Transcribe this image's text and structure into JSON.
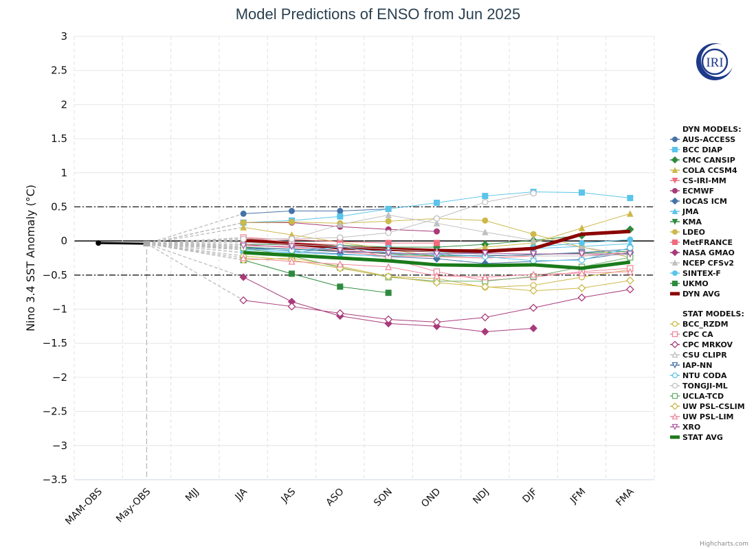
{
  "chart_data": {
    "type": "line",
    "title": "Model Predictions of ENSO from Jun 2025",
    "xlabel": "",
    "ylabel": "Nino 3.4 SST Anomaly (°C)",
    "ylim": [
      -3.5,
      3
    ],
    "yticks": [
      3,
      2.5,
      2,
      1.5,
      1,
      0.5,
      0,
      -0.5,
      -1,
      -1.5,
      -2,
      -2.5,
      -3,
      -3.5
    ],
    "ytick_labels": [
      "3",
      "2.5",
      "2",
      "1.5",
      "1",
      "0.5",
      "0",
      "−0.5",
      "−1",
      "−1.5",
      "−2",
      "−2.5",
      "−3",
      "−3.5"
    ],
    "categories": [
      "MAM-OBS",
      "May-OBS",
      "MJJ",
      "JJA",
      "JAS",
      "ASO",
      "SON",
      "OND",
      "NDJ",
      "DJF",
      "JFM",
      "FMA"
    ],
    "grid": true,
    "reference_lines": [
      0.5,
      -0.5
    ],
    "legend_position": "right",
    "observed": {
      "name": "OBS",
      "color": "#000000",
      "values": [
        -0.03,
        -0.04,
        null,
        null,
        null,
        null,
        null,
        null,
        null,
        null,
        null,
        null
      ]
    },
    "legend_groups": [
      {
        "heading": "DYN MODELS:",
        "series": [
          {
            "name": "AUS-ACCESS",
            "color": "#4572a7",
            "marker": "circle",
            "filled": true,
            "values": [
              null,
              null,
              null,
              0.4,
              0.44,
              0.44,
              0.47,
              null,
              null,
              null,
              null,
              null
            ]
          },
          {
            "name": "BCC DIAP",
            "color": "#5bc4ea",
            "marker": "square",
            "filled": true,
            "values": [
              null,
              null,
              null,
              0.27,
              0.3,
              0.36,
              0.47,
              0.56,
              0.66,
              0.72,
              0.71,
              0.63
            ]
          },
          {
            "name": "CMC CANSIP",
            "color": "#2e8b3e",
            "marker": "diamond",
            "filled": true,
            "values": [
              null,
              null,
              null,
              -0.05,
              -0.05,
              -0.06,
              -0.09,
              -0.09,
              -0.05,
              0.01,
              0.08,
              0.17
            ]
          },
          {
            "name": "COLA CCSM4",
            "color": "#cdb84a",
            "marker": "triangle",
            "filled": true,
            "values": [
              null,
              null,
              null,
              0.2,
              0.09,
              -0.02,
              -0.12,
              -0.23,
              -0.09,
              -0.03,
              0.19,
              0.4
            ]
          },
          {
            "name": "CS-IRI-MM",
            "color": "#f06b7e",
            "marker": "triangle-down",
            "filled": true,
            "values": [
              null,
              null,
              null,
              -0.05,
              -0.1,
              -0.16,
              -0.22,
              -0.23,
              -0.25,
              -0.22,
              -0.22,
              -0.17
            ]
          },
          {
            "name": "ECMWF",
            "color": "#a83a7a",
            "marker": "circle",
            "filled": true,
            "values": [
              null,
              null,
              null,
              0.27,
              0.27,
              0.21,
              0.17,
              0.14,
              null,
              null,
              null,
              null
            ]
          },
          {
            "name": "IOCAS ICM",
            "color": "#4572a7",
            "marker": "diamond",
            "filled": true,
            "values": [
              null,
              null,
              null,
              -0.1,
              -0.15,
              -0.19,
              -0.23,
              -0.26,
              -0.33,
              -0.3,
              -0.27,
              -0.17
            ]
          },
          {
            "name": "JMA",
            "color": "#5bc4ea",
            "marker": "triangle",
            "filled": true,
            "values": [
              null,
              null,
              null,
              -0.13,
              -0.17,
              -0.2,
              -0.22,
              -0.18,
              -0.17,
              -0.11,
              -0.08,
              -0.04
            ]
          },
          {
            "name": "KMA",
            "color": "#2e8b3e",
            "marker": "triangle-down",
            "filled": true,
            "values": [
              null,
              null,
              null,
              -0.09,
              -0.12,
              -0.14,
              -0.19,
              -0.22,
              -0.22,
              -0.2,
              -0.18,
              -0.15
            ]
          },
          {
            "name": "LDEO",
            "color": "#cdb84a",
            "marker": "circle",
            "filled": true,
            "values": [
              null,
              null,
              null,
              0.27,
              0.28,
              0.26,
              0.29,
              0.33,
              0.3,
              0.1,
              -0.09,
              -0.24
            ]
          },
          {
            "name": "MetFRANCE",
            "color": "#f06b7e",
            "marker": "square",
            "filled": true,
            "values": [
              null,
              null,
              null,
              0.05,
              0.02,
              -0.01,
              -0.03,
              -0.03,
              null,
              null,
              null,
              null
            ]
          },
          {
            "name": "NASA GMAO",
            "color": "#a83a7a",
            "marker": "diamond",
            "filled": true,
            "values": [
              null,
              null,
              null,
              -0.53,
              -0.89,
              -1.1,
              -1.21,
              -1.25,
              -1.33,
              -1.28,
              null,
              null
            ]
          },
          {
            "name": "NCEP CFSv2",
            "color": "#c0c0c0",
            "marker": "triangle",
            "filled": true,
            "values": [
              null,
              null,
              null,
              0.03,
              0.03,
              0.24,
              0.38,
              0.26,
              0.13,
              0.01,
              -0.09,
              -0.2
            ]
          },
          {
            "name": "SINTEX-F",
            "color": "#5bc4ea",
            "marker": "circle",
            "filled": true,
            "values": [
              null,
              null,
              null,
              -0.17,
              -0.18,
              -0.08,
              -0.1,
              -0.15,
              -0.18,
              -0.09,
              -0.03,
              0.02
            ]
          },
          {
            "name": "UKMO",
            "color": "#2e8b3e",
            "marker": "square",
            "filled": true,
            "values": [
              null,
              null,
              null,
              -0.28,
              -0.48,
              -0.67,
              -0.76,
              null,
              null,
              null,
              null,
              null
            ]
          },
          {
            "name": "DYN AVG",
            "color": "#8b0000",
            "marker": "none",
            "filled": true,
            "values": [
              null,
              null,
              null,
              0.01,
              -0.04,
              -0.1,
              -0.12,
              -0.14,
              -0.15,
              -0.11,
              0.1,
              0.14
            ]
          }
        ]
      },
      {
        "heading": "STAT MODELS:",
        "series": [
          {
            "name": "BCC_RZDM",
            "color": "#cdb84a",
            "marker": "circle",
            "filled": false,
            "values": [
              null,
              null,
              null,
              -0.28,
              -0.25,
              -0.37,
              -0.52,
              -0.55,
              -0.68,
              -0.65,
              -0.53,
              -0.42
            ]
          },
          {
            "name": "CPC CA",
            "color": "#f0889a",
            "marker": "square",
            "filled": false,
            "values": [
              null,
              null,
              null,
              0.05,
              -0.02,
              -0.06,
              -0.25,
              -0.45,
              -0.58,
              -0.53,
              -0.45,
              -0.4
            ]
          },
          {
            "name": "CPC MRKOV",
            "color": "#a83a7a",
            "marker": "diamond",
            "filled": false,
            "values": [
              null,
              null,
              null,
              -0.87,
              -0.96,
              -1.06,
              -1.15,
              -1.19,
              -1.12,
              -0.98,
              -0.83,
              -0.71
            ]
          },
          {
            "name": "CSU CLIPR",
            "color": "#c0c0c0",
            "marker": "triangle",
            "filled": false,
            "values": [
              null,
              null,
              null,
              -0.02,
              -0.05,
              -0.08,
              -0.12,
              -0.16,
              -0.2,
              -0.22,
              -0.22,
              -0.2
            ]
          },
          {
            "name": "IAP-NN",
            "color": "#4572a7",
            "marker": "triangle-down",
            "filled": false,
            "values": [
              null,
              null,
              null,
              -0.1,
              -0.12,
              -0.16,
              -0.17,
              -0.2,
              -0.22,
              -0.2,
              -0.17,
              -0.12
            ]
          },
          {
            "name": "NTU CODA",
            "color": "#5bc4ea",
            "marker": "circle",
            "filled": false,
            "values": [
              null,
              null,
              null,
              -0.12,
              -0.14,
              -0.09,
              -0.17,
              -0.2,
              -0.23,
              -0.29,
              -0.28,
              -0.1
            ]
          },
          {
            "name": "TONGJI-ML",
            "color": "#c0c0c0",
            "marker": "circle",
            "filled": false,
            "values": [
              null,
              null,
              null,
              0.03,
              0.03,
              0.05,
              0.12,
              0.33,
              0.57,
              0.7,
              null,
              null
            ]
          },
          {
            "name": "UCLA-TCD",
            "color": "#6fb06f",
            "marker": "square",
            "filled": false,
            "values": [
              null,
              null,
              null,
              -0.1,
              -0.22,
              -0.39,
              -0.53,
              -0.59,
              -0.59,
              -0.52,
              -0.38,
              -0.24
            ]
          },
          {
            "name": "UW PSL-CSLIM",
            "color": "#cdb84a",
            "marker": "diamond",
            "filled": false,
            "values": [
              null,
              null,
              null,
              -0.22,
              -0.28,
              -0.4,
              -0.52,
              -0.61,
              -0.67,
              -0.73,
              -0.69,
              -0.58
            ]
          },
          {
            "name": "UW PSL-LIM",
            "color": "#f0889a",
            "marker": "triangle",
            "filled": false,
            "values": [
              null,
              null,
              null,
              -0.25,
              -0.3,
              -0.34,
              -0.38,
              -0.51,
              -0.53,
              -0.49,
              -0.47,
              -0.45
            ]
          },
          {
            "name": "XRO",
            "color": "#b05ca0",
            "marker": "triangle-down",
            "filled": false,
            "values": [
              null,
              null,
              null,
              -0.07,
              -0.08,
              -0.14,
              -0.18,
              -0.19,
              -0.18,
              -0.19,
              -0.19,
              -0.19
            ]
          },
          {
            "name": "STAT AVG",
            "color": "#1a7a1a",
            "marker": "none",
            "filled": true,
            "values": [
              null,
              null,
              null,
              -0.17,
              -0.21,
              -0.25,
              -0.29,
              -0.35,
              -0.36,
              -0.35,
              -0.4,
              -0.31
            ]
          }
        ]
      }
    ]
  },
  "logo": {
    "text": "IRI",
    "color": "#1f3a8a"
  },
  "credit": "Highcharts.com"
}
